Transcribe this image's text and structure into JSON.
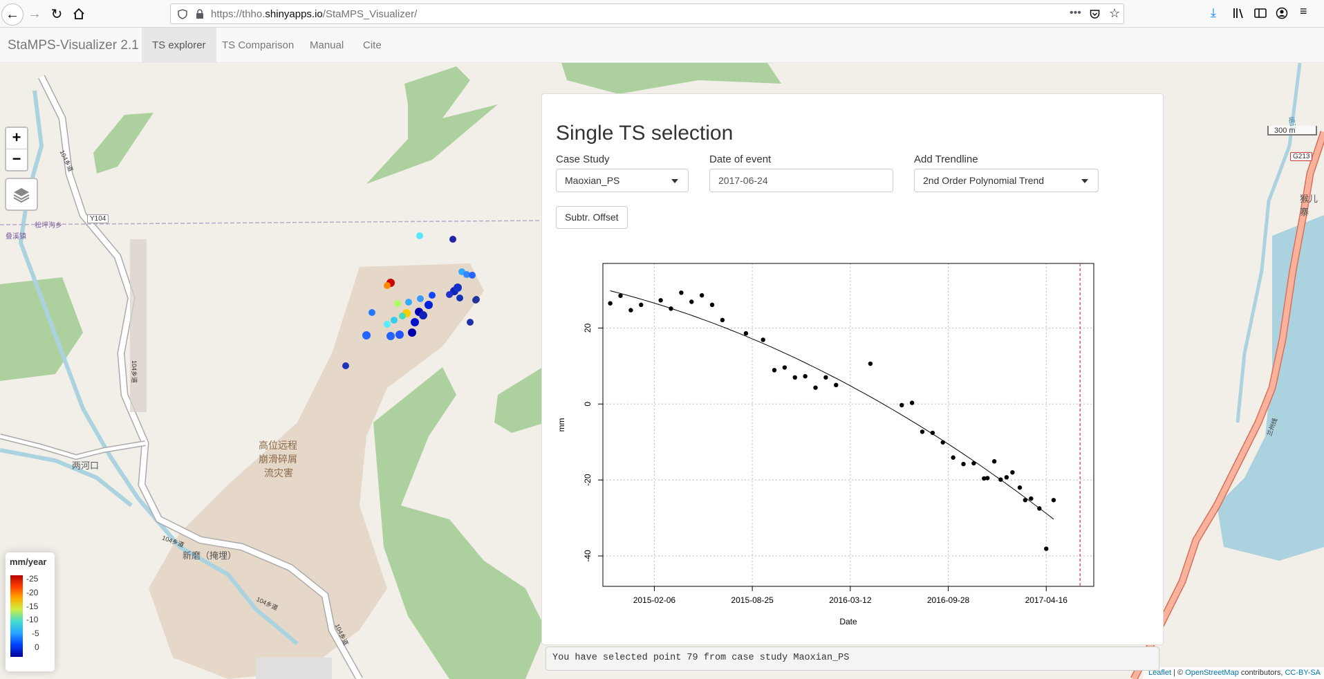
{
  "browser": {
    "url_prefix": "https://thho.",
    "url_domain": "shinyapps.io",
    "url_path": "/StaMPS_Visualizer/"
  },
  "navbar": {
    "brand": "StaMPS-Visualizer 2.1",
    "tabs": [
      {
        "label": "TS explorer",
        "active": true
      },
      {
        "label": "TS Comparison",
        "active": false
      },
      {
        "label": "Manual",
        "active": false
      },
      {
        "label": "Cite",
        "active": false
      }
    ]
  },
  "map": {
    "zoom_in": "+",
    "zoom_out": "−",
    "scale_label": "300 m",
    "labels": {
      "county": "松坪沟乡",
      "town_left": "叠溪镇",
      "road_y104": "Y104",
      "road_104_a": "104乡道",
      "road_104_b": "104乡道",
      "road_104_c": "104乡道",
      "road_104_d": "104乡道",
      "road_104_e": "104乡道",
      "village_lianghe": "两河口",
      "village_xinmo": "新磨（掩埋）",
      "hazard_1": "高位远程",
      "hazard_2": "崩滑碎屑",
      "hazard_3": "流灾害",
      "road_g213": "G213",
      "place_right": "猴儿寨",
      "river_right": "岷江",
      "road_lanzhou": "兰州线"
    },
    "legend": {
      "title": "mm/year",
      "labels": [
        "-25",
        "-20",
        "-15",
        "-10",
        "-5",
        "0"
      ]
    },
    "attribution": {
      "leaflet": "Leaflet",
      "sep": " | © ",
      "osm": "OpenStreetMap",
      "contrib": " contributors, ",
      "license": "CC-BY-SA"
    }
  },
  "panel": {
    "title": "Single TS selection",
    "case_study": {
      "label": "Case Study",
      "value": "Maoxian_PS"
    },
    "date_event": {
      "label": "Date of event",
      "value": "2017-06-24"
    },
    "trendline": {
      "label": "Add Trendline",
      "value": "2nd Order Polynomial Trend"
    },
    "offset_button": "Subtr. Offset"
  },
  "status_text": "You have selected point 79 from case study Maoxian_PS",
  "chart_data": {
    "type": "scatter",
    "xlabel": "Date",
    "ylabel": "mm",
    "x_ticks": [
      "2015-02-06",
      "2015-08-25",
      "2016-03-12",
      "2016-09-28",
      "2017-04-16"
    ],
    "y_ticks": [
      -40,
      -20,
      0,
      20
    ],
    "xlim": [
      "2014-10-24",
      "2017-07-22"
    ],
    "ylim": [
      -48,
      37
    ],
    "event_date": "2017-06-24",
    "trendline": "2nd Order Polynomial Trend",
    "points": [
      [
        "2014-11-08",
        26.5
      ],
      [
        "2014-11-29",
        28.5
      ],
      [
        "2014-12-20",
        24.7
      ],
      [
        "2015-01-10",
        26.1
      ],
      [
        "2015-02-19",
        27.3
      ],
      [
        "2015-03-12",
        25.1
      ],
      [
        "2015-04-02",
        29.3
      ],
      [
        "2015-04-23",
        26.9
      ],
      [
        "2015-05-14",
        28.6
      ],
      [
        "2015-06-04",
        26.1
      ],
      [
        "2015-06-25",
        22.1
      ],
      [
        "2015-08-12",
        18.6
      ],
      [
        "2015-09-16",
        16.9
      ],
      [
        "2015-10-09",
        8.9
      ],
      [
        "2015-10-30",
        9.6
      ],
      [
        "2015-11-20",
        7.0
      ],
      [
        "2015-12-11",
        7.3
      ],
      [
        "2016-01-01",
        4.3
      ],
      [
        "2016-01-22",
        7.0
      ],
      [
        "2016-02-12",
        5.0
      ],
      [
        "2016-04-22",
        10.6
      ],
      [
        "2016-06-25",
        -0.3
      ],
      [
        "2016-07-16",
        0.3
      ],
      [
        "2016-08-06",
        -7.3
      ],
      [
        "2016-08-27",
        -7.6
      ],
      [
        "2016-09-17",
        -10.1
      ],
      [
        "2016-10-08",
        -14.1
      ],
      [
        "2016-10-29",
        -15.8
      ],
      [
        "2016-11-19",
        -15.6
      ],
      [
        "2016-12-10",
        -19.6
      ],
      [
        "2016-12-17",
        -19.5
      ],
      [
        "2016-12-31",
        -15.1
      ],
      [
        "2017-01-13",
        -19.9
      ],
      [
        "2017-01-25",
        -19.3
      ],
      [
        "2017-02-06",
        -18.0
      ],
      [
        "2017-02-21",
        -22.0
      ],
      [
        "2017-03-04",
        -25.3
      ],
      [
        "2017-03-16",
        -24.9
      ],
      [
        "2017-04-02",
        -27.5
      ],
      [
        "2017-04-16",
        -38.1
      ],
      [
        "2017-05-01",
        -25.3
      ]
    ]
  }
}
